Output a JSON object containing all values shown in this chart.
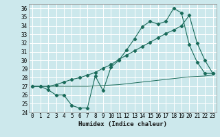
{
  "xlabel": "Humidex (Indice chaleur)",
  "bg_color": "#cce8ec",
  "grid_color": "#ffffff",
  "line_color": "#1a6b5a",
  "xlim": [
    -0.5,
    23.5
  ],
  "ylim": [
    24,
    36.5
  ],
  "yticks": [
    24,
    25,
    26,
    27,
    28,
    29,
    30,
    31,
    32,
    33,
    34,
    35,
    36
  ],
  "xticks": [
    0,
    1,
    2,
    3,
    4,
    5,
    6,
    7,
    8,
    9,
    10,
    11,
    12,
    13,
    14,
    15,
    16,
    17,
    18,
    19,
    20,
    21,
    22,
    23
  ],
  "line1_x": [
    0,
    1,
    2,
    3,
    4,
    5,
    6,
    7,
    8,
    9,
    10,
    11,
    12,
    13,
    14,
    15,
    16,
    17,
    18,
    19,
    20,
    21,
    22,
    23
  ],
  "line1_y": [
    27.0,
    27.0,
    26.6,
    26.0,
    26.0,
    24.8,
    24.5,
    24.5,
    28.2,
    26.5,
    29.2,
    30.0,
    31.2,
    32.5,
    33.9,
    34.5,
    34.2,
    34.5,
    36.0,
    35.5,
    31.8,
    29.8,
    28.5,
    28.5
  ],
  "line2_x": [
    0,
    1,
    2,
    3,
    4,
    5,
    6,
    7,
    8,
    9,
    10,
    11,
    12,
    13,
    14,
    15,
    16,
    17,
    18,
    19,
    20,
    21,
    22,
    23
  ],
  "line2_y": [
    27.0,
    27.0,
    27.0,
    27.2,
    27.5,
    27.8,
    28.0,
    28.3,
    28.6,
    29.1,
    29.5,
    30.1,
    30.6,
    31.1,
    31.6,
    32.1,
    32.6,
    33.1,
    33.5,
    34.0,
    35.2,
    32.0,
    30.0,
    28.5
  ],
  "line3_x": [
    0,
    1,
    2,
    3,
    4,
    5,
    6,
    7,
    8,
    9,
    10,
    11,
    12,
    13,
    14,
    15,
    16,
    17,
    18,
    19,
    20,
    21,
    22,
    23
  ],
  "line3_y": [
    27.0,
    27.0,
    27.0,
    27.0,
    27.0,
    27.0,
    27.0,
    27.0,
    27.05,
    27.1,
    27.15,
    27.2,
    27.3,
    27.4,
    27.5,
    27.6,
    27.7,
    27.8,
    27.9,
    28.0,
    28.1,
    28.15,
    28.2,
    28.3
  ],
  "xlabel_fontsize": 6.5,
  "tick_fontsize": 5.5
}
